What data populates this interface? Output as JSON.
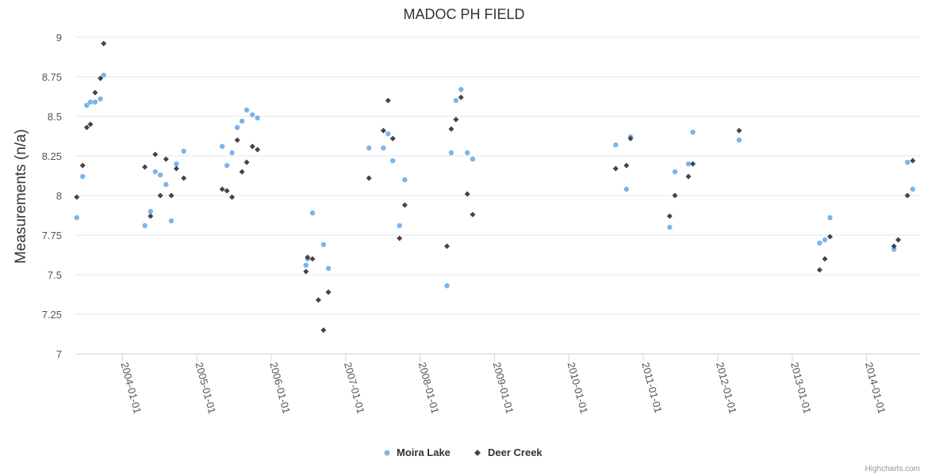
{
  "chart_data": {
    "type": "scatter",
    "title": "MADOC PH FIELD",
    "ylabel": "Measurements (n/a)",
    "xlabel": "",
    "ylim": [
      7,
      9
    ],
    "yticks": [
      7,
      7.25,
      7.5,
      7.75,
      8,
      8.25,
      8.5,
      8.75,
      9
    ],
    "yticks_labels": [
      "7",
      "7.25",
      "7.5",
      "7.75",
      "8",
      "8.25",
      "8.5",
      "8.75",
      "9"
    ],
    "xlim": [
      "2003-05-15",
      "2014-09-20"
    ],
    "xticks": [
      "2004-01-01",
      "2005-01-01",
      "2006-01-01",
      "2007-01-01",
      "2008-01-01",
      "2009-01-01",
      "2010-01-01",
      "2011-01-01",
      "2012-01-01",
      "2013-01-01",
      "2014-01-01"
    ],
    "grid": true,
    "legend_position": "bottom-center",
    "credits": "Highcharts.com",
    "series": [
      {
        "name": "Moira Lake",
        "color": "#7cb5ec",
        "marker": "circle",
        "points": [
          [
            "2003-05-22",
            7.86
          ],
          [
            "2003-06-20",
            8.12
          ],
          [
            "2003-07-10",
            8.57
          ],
          [
            "2003-07-28",
            8.59
          ],
          [
            "2003-08-20",
            8.59
          ],
          [
            "2003-09-15",
            8.61
          ],
          [
            "2003-10-01",
            8.76
          ],
          [
            "2004-04-20",
            7.81
          ],
          [
            "2004-05-18",
            7.9
          ],
          [
            "2004-06-10",
            8.15
          ],
          [
            "2004-07-05",
            8.13
          ],
          [
            "2004-08-02",
            8.07
          ],
          [
            "2004-08-28",
            7.84
          ],
          [
            "2004-09-22",
            8.2
          ],
          [
            "2004-10-28",
            8.28
          ],
          [
            "2005-05-05",
            8.31
          ],
          [
            "2005-05-28",
            8.19
          ],
          [
            "2005-06-22",
            8.27
          ],
          [
            "2005-07-18",
            8.43
          ],
          [
            "2005-08-10",
            8.47
          ],
          [
            "2005-09-02",
            8.54
          ],
          [
            "2005-09-30",
            8.51
          ],
          [
            "2005-10-25",
            8.49
          ],
          [
            "2006-06-20",
            7.56
          ],
          [
            "2006-06-28",
            7.6
          ],
          [
            "2006-07-22",
            7.89
          ],
          [
            "2006-09-14",
            7.69
          ],
          [
            "2006-10-08",
            7.54
          ],
          [
            "2007-04-25",
            8.3
          ],
          [
            "2007-07-05",
            8.3
          ],
          [
            "2007-07-28",
            8.39
          ],
          [
            "2007-08-20",
            8.22
          ],
          [
            "2007-09-22",
            7.81
          ],
          [
            "2007-10-18",
            8.1
          ],
          [
            "2008-05-12",
            7.43
          ],
          [
            "2008-06-02",
            8.27
          ],
          [
            "2008-06-25",
            8.6
          ],
          [
            "2008-07-20",
            8.67
          ],
          [
            "2008-08-20",
            8.27
          ],
          [
            "2008-09-15",
            8.23
          ],
          [
            "2010-08-18",
            8.32
          ],
          [
            "2010-10-10",
            8.04
          ],
          [
            "2010-10-30",
            8.37
          ],
          [
            "2011-05-10",
            7.8
          ],
          [
            "2011-06-05",
            8.15
          ],
          [
            "2011-08-10",
            8.2
          ],
          [
            "2011-09-01",
            8.4
          ],
          [
            "2012-04-15",
            8.35
          ],
          [
            "2013-05-15",
            7.7
          ],
          [
            "2013-06-10",
            7.72
          ],
          [
            "2013-07-05",
            7.86
          ],
          [
            "2014-05-15",
            7.66
          ],
          [
            "2014-07-20",
            8.21
          ],
          [
            "2014-08-15",
            8.04
          ]
        ]
      },
      {
        "name": "Deer Creek",
        "color": "#434348",
        "marker": "diamond",
        "points": [
          [
            "2003-05-22",
            7.99
          ],
          [
            "2003-06-20",
            8.19
          ],
          [
            "2003-07-10",
            8.43
          ],
          [
            "2003-07-28",
            8.45
          ],
          [
            "2003-08-20",
            8.65
          ],
          [
            "2003-09-15",
            8.74
          ],
          [
            "2003-10-01",
            8.96
          ],
          [
            "2004-04-20",
            8.18
          ],
          [
            "2004-05-18",
            7.87
          ],
          [
            "2004-06-10",
            8.26
          ],
          [
            "2004-07-05",
            8.0
          ],
          [
            "2004-08-02",
            8.23
          ],
          [
            "2004-08-28",
            8.0
          ],
          [
            "2004-09-22",
            8.17
          ],
          [
            "2004-10-28",
            8.11
          ],
          [
            "2005-05-05",
            8.04
          ],
          [
            "2005-05-28",
            8.03
          ],
          [
            "2005-06-22",
            7.99
          ],
          [
            "2005-07-18",
            8.35
          ],
          [
            "2005-08-10",
            8.15
          ],
          [
            "2005-09-02",
            8.21
          ],
          [
            "2005-09-30",
            8.31
          ],
          [
            "2005-10-25",
            8.29
          ],
          [
            "2006-06-20",
            7.52
          ],
          [
            "2006-06-28",
            7.61
          ],
          [
            "2006-07-22",
            7.6
          ],
          [
            "2006-08-20",
            7.34
          ],
          [
            "2006-09-14",
            7.15
          ],
          [
            "2006-10-08",
            7.39
          ],
          [
            "2007-04-25",
            8.11
          ],
          [
            "2007-07-05",
            8.41
          ],
          [
            "2007-07-28",
            8.6
          ],
          [
            "2007-08-20",
            8.36
          ],
          [
            "2007-09-22",
            7.73
          ],
          [
            "2007-10-18",
            7.94
          ],
          [
            "2008-05-12",
            7.68
          ],
          [
            "2008-06-02",
            8.42
          ],
          [
            "2008-06-25",
            8.48
          ],
          [
            "2008-07-20",
            8.62
          ],
          [
            "2008-08-20",
            8.01
          ],
          [
            "2008-09-15",
            7.88
          ],
          [
            "2010-08-18",
            8.17
          ],
          [
            "2010-10-10",
            8.19
          ],
          [
            "2010-10-30",
            8.36
          ],
          [
            "2011-05-10",
            7.87
          ],
          [
            "2011-06-05",
            8.0
          ],
          [
            "2011-08-10",
            8.12
          ],
          [
            "2011-09-01",
            8.2
          ],
          [
            "2012-04-15",
            8.41
          ],
          [
            "2013-05-15",
            7.53
          ],
          [
            "2013-06-10",
            7.6
          ],
          [
            "2013-07-05",
            7.74
          ],
          [
            "2014-05-15",
            7.68
          ],
          [
            "2014-06-05",
            7.72
          ],
          [
            "2014-07-20",
            8.0
          ],
          [
            "2014-08-15",
            8.22
          ]
        ]
      }
    ]
  }
}
